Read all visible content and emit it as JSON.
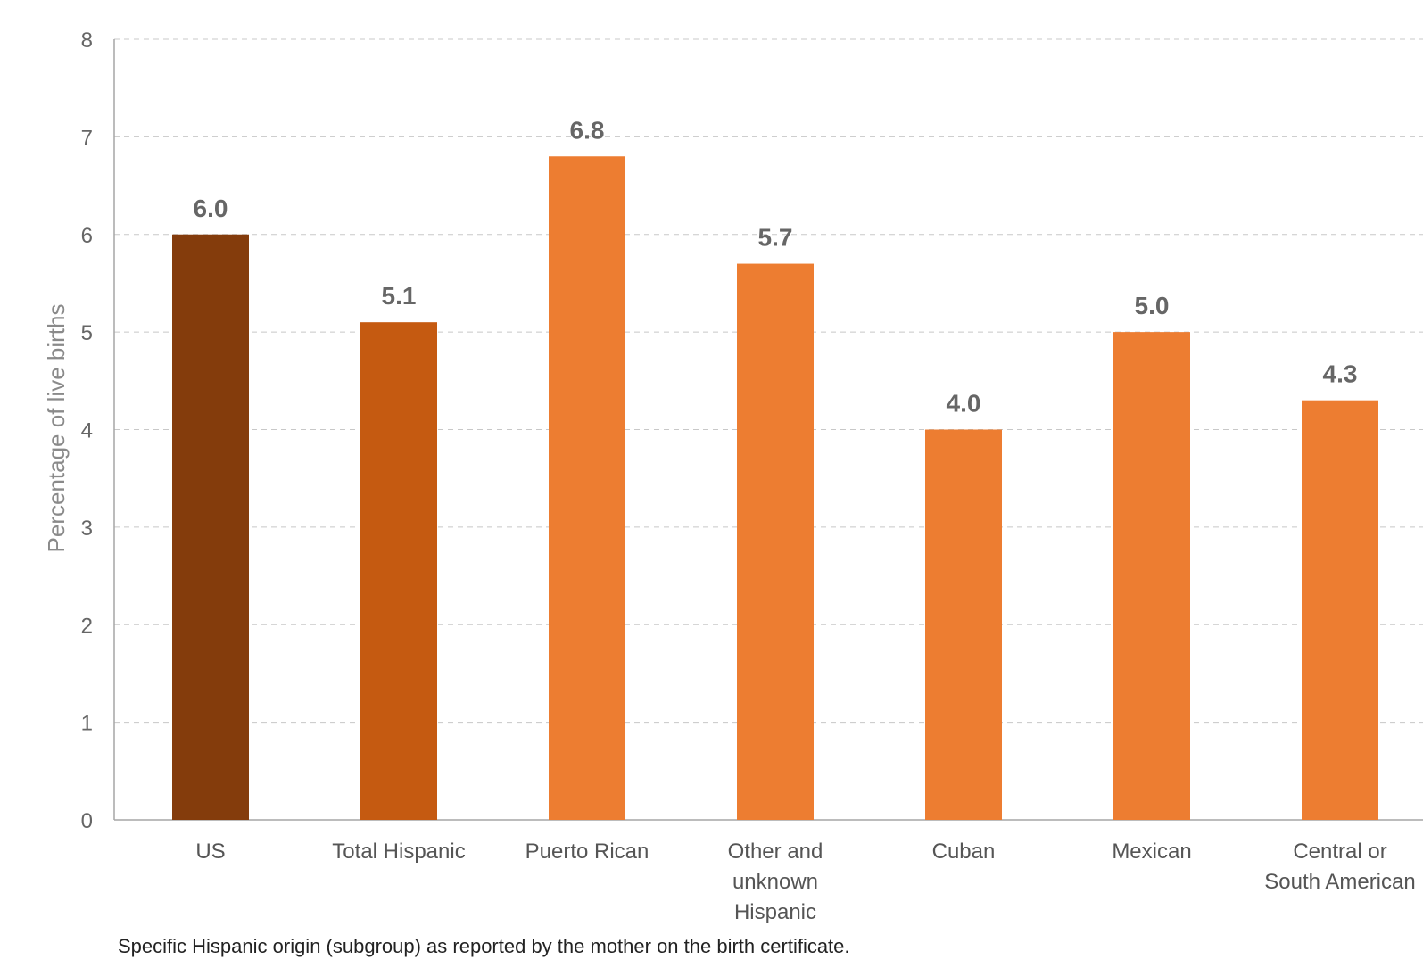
{
  "chart_data": {
    "type": "bar",
    "categories": [
      "US",
      "Total Hispanic",
      "Puerto Rican",
      "Other and unknown Hispanic",
      "Cuban",
      "Mexican",
      "Central or South American"
    ],
    "category_lines": [
      [
        "US"
      ],
      [
        "Total Hispanic"
      ],
      [
        "Puerto Rican"
      ],
      [
        "Other and",
        "unknown",
        "Hispanic"
      ],
      [
        "Cuban"
      ],
      [
        "Mexican"
      ],
      [
        "Central or",
        "South American"
      ]
    ],
    "values": [
      6.0,
      5.1,
      6.8,
      5.7,
      4.0,
      5.0,
      4.3
    ],
    "data_labels": [
      "6.0",
      "5.1",
      "6.8",
      "5.7",
      "4.0",
      "5.0",
      "4.3"
    ],
    "bar_colors": [
      "#843c0c",
      "#c55a11",
      "#ed7d31",
      "#ed7d31",
      "#ed7d31",
      "#ed7d31",
      "#ed7d31"
    ],
    "title": "",
    "xlabel": "Specific Hispanic origin (subgroup) as reported by the mother on the birth certificate.",
    "ylabel": "Percentage of live births",
    "ylim": [
      0,
      8
    ],
    "yticks": [
      0,
      1,
      2,
      3,
      4,
      5,
      6,
      7,
      8
    ],
    "grid": true,
    "grid_style": "dashed",
    "legend": "none"
  }
}
